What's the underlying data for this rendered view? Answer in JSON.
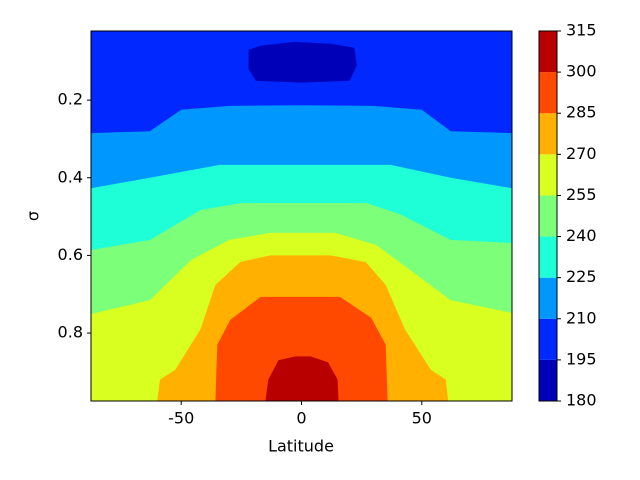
{
  "chart_data": {
    "type": "contourf",
    "x_label": "Latitude",
    "y_label": "σ",
    "xlim": [
      -87.5,
      87.5
    ],
    "xticks": [
      -50,
      0,
      50
    ],
    "ylim": [
      0.975,
      0.022
    ],
    "yticks": [
      0.2,
      0.4,
      0.6,
      0.8
    ],
    "levels": [
      180,
      195,
      210,
      225,
      240,
      255,
      270,
      285,
      300,
      315
    ],
    "colors": [
      "#0000b8",
      "#0028ff",
      "#0098ff",
      "#1effd8",
      "#7cff79",
      "#d8ff1f",
      "#ffb000",
      "#ff4800",
      "#b80000"
    ],
    "contours": [
      {
        "level": 195,
        "inside": "low",
        "x": [
          -22,
          -17,
          -3,
          12,
          22,
          23,
          20,
          0,
          -19,
          -22
        ],
        "y": [
          0.07,
          0.06,
          0.05,
          0.055,
          0.065,
          0.11,
          0.15,
          0.155,
          0.15,
          0.12
        ]
      },
      {
        "level": 210,
        "x": [
          -87.5,
          -63,
          -50,
          -30,
          0,
          30,
          50,
          62,
          87.5
        ],
        "y": [
          0.285,
          0.28,
          0.225,
          0.215,
          0.213,
          0.215,
          0.225,
          0.28,
          0.285
        ]
      },
      {
        "level": 225,
        "x": [
          -87.5,
          -63,
          -34,
          0,
          37,
          62,
          87.5
        ],
        "y": [
          0.427,
          0.4,
          0.367,
          0.367,
          0.367,
          0.4,
          0.427
        ]
      },
      {
        "level": 240,
        "x": [
          -87.5,
          -63,
          -42,
          -25,
          0,
          27,
          41,
          62,
          87.5
        ],
        "y": [
          0.586,
          0.56,
          0.483,
          0.465,
          0.465,
          0.465,
          0.494,
          0.56,
          0.568
        ]
      },
      {
        "level": 255,
        "x": [
          -87.5,
          -63,
          -46,
          -30,
          -13,
          14,
          31,
          45,
          62,
          87.5
        ],
        "y": [
          0.751,
          0.715,
          0.612,
          0.56,
          0.542,
          0.542,
          0.573,
          0.637,
          0.715,
          0.748
        ]
      },
      {
        "level": 270,
        "x": [
          -60,
          -58.8,
          -52.5,
          -42,
          -35.8,
          -25.4,
          -13,
          12,
          26.7,
          35,
          43,
          53.8,
          60,
          61
        ],
        "y": [
          0.975,
          0.92,
          0.895,
          0.79,
          0.676,
          0.617,
          0.6,
          0.6,
          0.617,
          0.676,
          0.79,
          0.895,
          0.92,
          0.975
        ]
      },
      {
        "level": 285,
        "x": [
          -35.8,
          -35,
          -29.6,
          -17,
          16,
          29,
          35,
          35.8
        ],
        "y": [
          0.975,
          0.83,
          0.766,
          0.707,
          0.707,
          0.761,
          0.83,
          0.975
        ]
      },
      {
        "level": 300,
        "x": [
          -15,
          -13.8,
          -9.6,
          -2.5,
          3.75,
          11,
          15,
          15.4
        ],
        "y": [
          0.975,
          0.92,
          0.87,
          0.86,
          0.86,
          0.875,
          0.92,
          0.975
        ]
      }
    ]
  }
}
